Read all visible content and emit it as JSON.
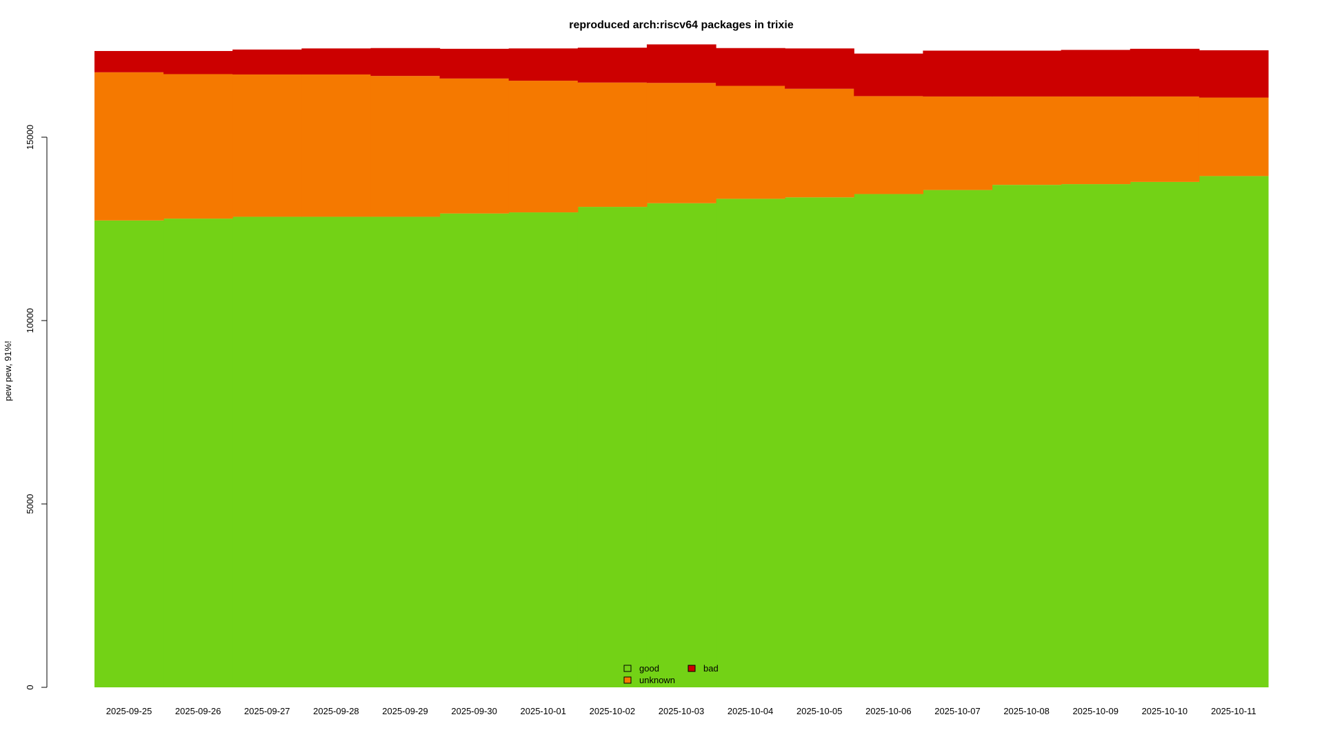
{
  "chart_data": {
    "type": "area",
    "title": "reproduced arch:riscv64 packages in trixie",
    "xlabel": "",
    "ylabel": "pew pew, 91%!",
    "ylim": [
      0,
      17400
    ],
    "yticks": [
      0,
      5000,
      10000,
      15000
    ],
    "categories": [
      "2025-09-25",
      "2025-09-26",
      "2025-09-27",
      "2025-09-28",
      "2025-09-29",
      "2025-09-30",
      "2025-10-01",
      "2025-10-02",
      "2025-10-03",
      "2025-10-04",
      "2025-10-05",
      "2025-10-06",
      "2025-10-07",
      "2025-10-08",
      "2025-10-09",
      "2025-10-10",
      "2025-10-11"
    ],
    "series": [
      {
        "name": "good",
        "color": "#73d216",
        "values": [
          12730,
          12780,
          12830,
          12830,
          12830,
          12920,
          12950,
          13100,
          13200,
          13320,
          13360,
          13450,
          13560,
          13700,
          13720,
          13780,
          13940
        ]
      },
      {
        "name": "unknown",
        "color": "#f57900",
        "values": [
          4040,
          3940,
          3880,
          3880,
          3840,
          3680,
          3590,
          3390,
          3280,
          3080,
          2960,
          2670,
          2550,
          2410,
          2390,
          2330,
          2140
        ]
      },
      {
        "name": "bad",
        "color": "#cc0000",
        "values": [
          580,
          630,
          680,
          710,
          760,
          810,
          880,
          950,
          1050,
          1030,
          1100,
          1160,
          1250,
          1250,
          1270,
          1300,
          1290
        ]
      }
    ],
    "legend": {
      "placement": "bottom-center",
      "items": [
        "good",
        "unknown",
        "bad"
      ]
    },
    "grid": false
  }
}
